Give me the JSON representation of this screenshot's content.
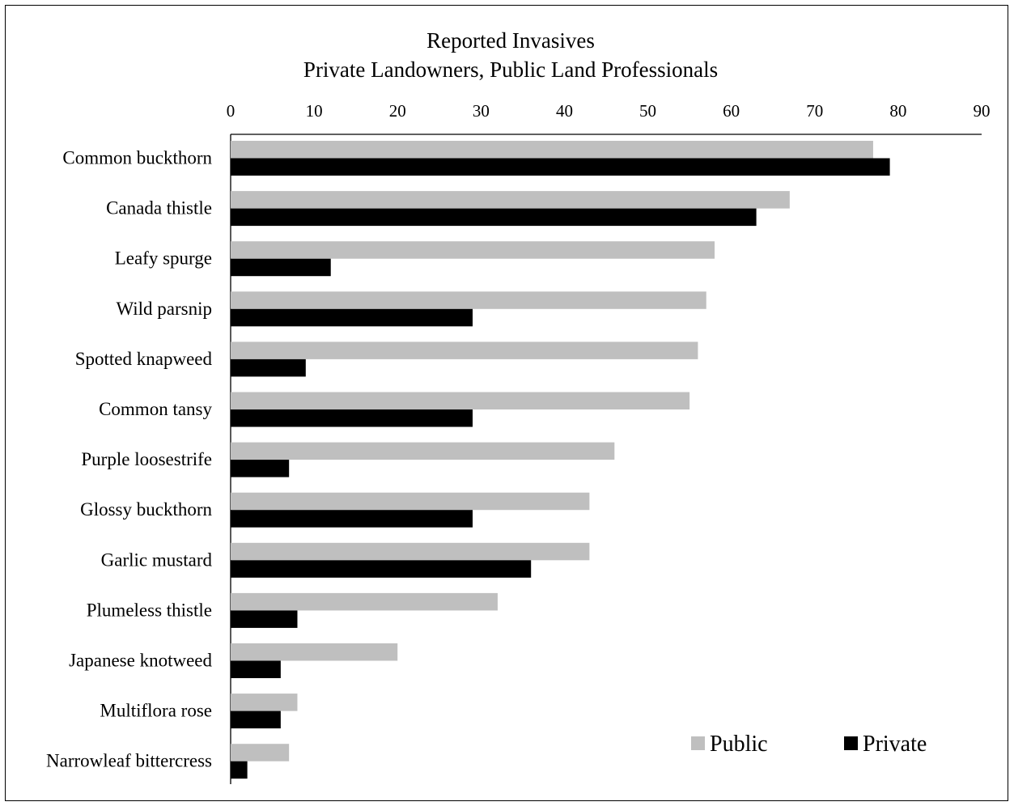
{
  "chart_data": {
    "type": "bar",
    "orientation": "horizontal",
    "title": "Reported Invasives",
    "subtitle": "Private Landowners, Public Land Professionals",
    "xlim": [
      0,
      90
    ],
    "xticks": [
      "0",
      "10",
      "20",
      "30",
      "40",
      "50",
      "60",
      "70",
      "80",
      "90"
    ],
    "categories": [
      "Common buckthorn",
      "Canada thistle",
      "Leafy spurge",
      "Wild parsnip",
      "Spotted knapweed",
      "Common tansy",
      "Purple loosestrife",
      "Glossy buckthorn",
      "Garlic mustard",
      "Plumeless thistle",
      "Japanese knotweed",
      "Multiflora rose",
      "Narrowleaf bittercress"
    ],
    "series": [
      {
        "name": "Public",
        "color": "#bfbfbf",
        "values": [
          77,
          67,
          58,
          57,
          56,
          55,
          46,
          43,
          43,
          32,
          20,
          8,
          7
        ]
      },
      {
        "name": "Private",
        "color": "#000000",
        "values": [
          79,
          63,
          12,
          29,
          9,
          29,
          7,
          29,
          36,
          8,
          6,
          6,
          2
        ]
      }
    ],
    "grid": false,
    "legend_position": "bottom-right"
  }
}
